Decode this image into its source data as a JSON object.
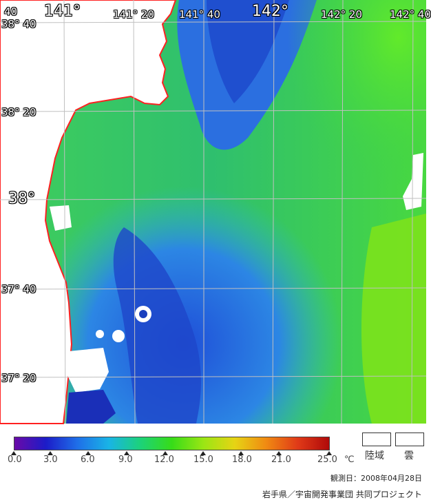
{
  "map": {
    "lon_labels": [
      "141°",
      "141° 20",
      "141° 40",
      "142°",
      "142° 20",
      "142° 40"
    ],
    "lat_labels": [
      "38° 40",
      "38° 20",
      "38°",
      "37° 40",
      "37° 20"
    ],
    "corner_label": "40"
  },
  "colors": {
    "land": "#ffffff",
    "coastline": "#ff2020",
    "graticule": "#c0c0c0",
    "cool": "#1a4fd6",
    "mid": "#2f9fe0",
    "warm": "#3ad43a",
    "bright": "#8cf000"
  },
  "scale": {
    "ticks": [
      "0.0",
      "3.0",
      "6.0",
      "9.0",
      "12.0",
      "15.0",
      "18.0",
      "21.0",
      "25.0"
    ],
    "unit": "℃",
    "gradient": [
      "#6a0aa8",
      "#1c1cc8",
      "#1f6fe8",
      "#19b4e6",
      "#1cd27a",
      "#37dc18",
      "#9ae614",
      "#e6d414",
      "#f08a12",
      "#e03a18",
      "#b00a0a"
    ]
  },
  "legend": {
    "land": "陸域",
    "cloud": "雲"
  },
  "observation": "観測日：2008年04月28日",
  "credit": "岩手県／宇宙開発事業団 共同プロジェクト"
}
